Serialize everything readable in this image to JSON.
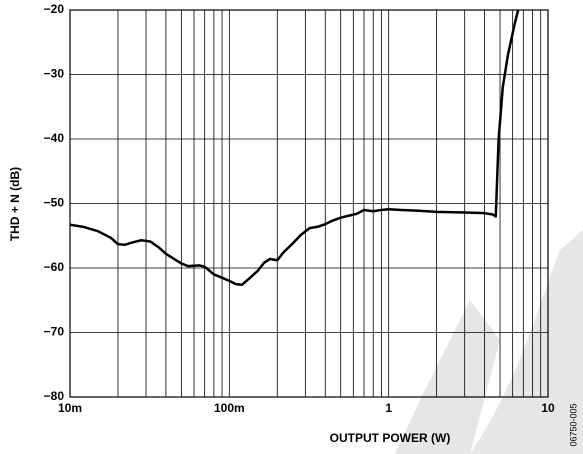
{
  "chart_data": {
    "type": "line",
    "xlabel": "OUTPUT POWER (W)",
    "ylabel": "THD + N (dB)",
    "note": "06750-005",
    "xscale": "log",
    "grid": true,
    "xlim": [
      0.01,
      10
    ],
    "ylim": [
      -80,
      -20
    ],
    "xticks": [
      {
        "value": 0.01,
        "label": "10m"
      },
      {
        "value": 0.1,
        "label": "100m"
      },
      1,
      10
    ],
    "xminorticks": [
      0.02,
      0.03,
      0.04,
      0.05,
      0.06,
      0.07,
      0.08,
      0.09,
      0.2,
      0.3,
      0.4,
      0.5,
      0.6,
      0.7,
      0.8,
      0.9,
      2,
      3,
      4,
      5,
      6,
      7,
      8,
      9
    ],
    "yticks": [
      {
        "value": -80,
        "label": "−80"
      },
      {
        "value": -70,
        "label": "−70"
      },
      {
        "value": -60,
        "label": "−60"
      },
      {
        "value": -50,
        "label": "−50"
      },
      {
        "value": -40,
        "label": "−40"
      },
      {
        "value": -30,
        "label": "−30"
      },
      {
        "value": -20,
        "label": "−20"
      }
    ],
    "x": [
      0.01,
      0.012,
      0.015,
      0.018,
      0.02,
      0.022,
      0.025,
      0.028,
      0.032,
      0.036,
      0.04,
      0.045,
      0.05,
      0.055,
      0.065,
      0.07,
      0.08,
      0.09,
      0.1,
      0.11,
      0.12,
      0.135,
      0.15,
      0.165,
      0.18,
      0.2,
      0.22,
      0.25,
      0.28,
      0.32,
      0.36,
      0.4,
      0.45,
      0.5,
      0.56,
      0.63,
      0.7,
      0.8,
      0.9,
      1,
      1.2,
      1.5,
      2,
      3,
      4,
      4.5,
      4.7,
      4.9,
      5.2,
      5.6,
      6.2,
      6.5
    ],
    "series": [
      {
        "color": "#000000",
        "values": [
          -53.3,
          -53.6,
          -54.3,
          -55.3,
          -56.3,
          -56.4,
          -56.0,
          -55.7,
          -55.9,
          -56.8,
          -57.8,
          -58.6,
          -59.3,
          -59.7,
          -59.6,
          -59.8,
          -61.0,
          -61.5,
          -62.0,
          -62.5,
          -62.6,
          -61.5,
          -60.5,
          -59.2,
          -58.6,
          -58.8,
          -57.5,
          -56.2,
          -54.9,
          -53.8,
          -53.6,
          -53.2,
          -52.6,
          -52.2,
          -51.9,
          -51.6,
          -51.0,
          -51.2,
          -51.0,
          -50.9,
          -51.0,
          -51.1,
          -51.3,
          -51.4,
          -51.5,
          -51.7,
          -52.0,
          -40,
          -32,
          -27,
          -22,
          -20
        ]
      }
    ]
  }
}
